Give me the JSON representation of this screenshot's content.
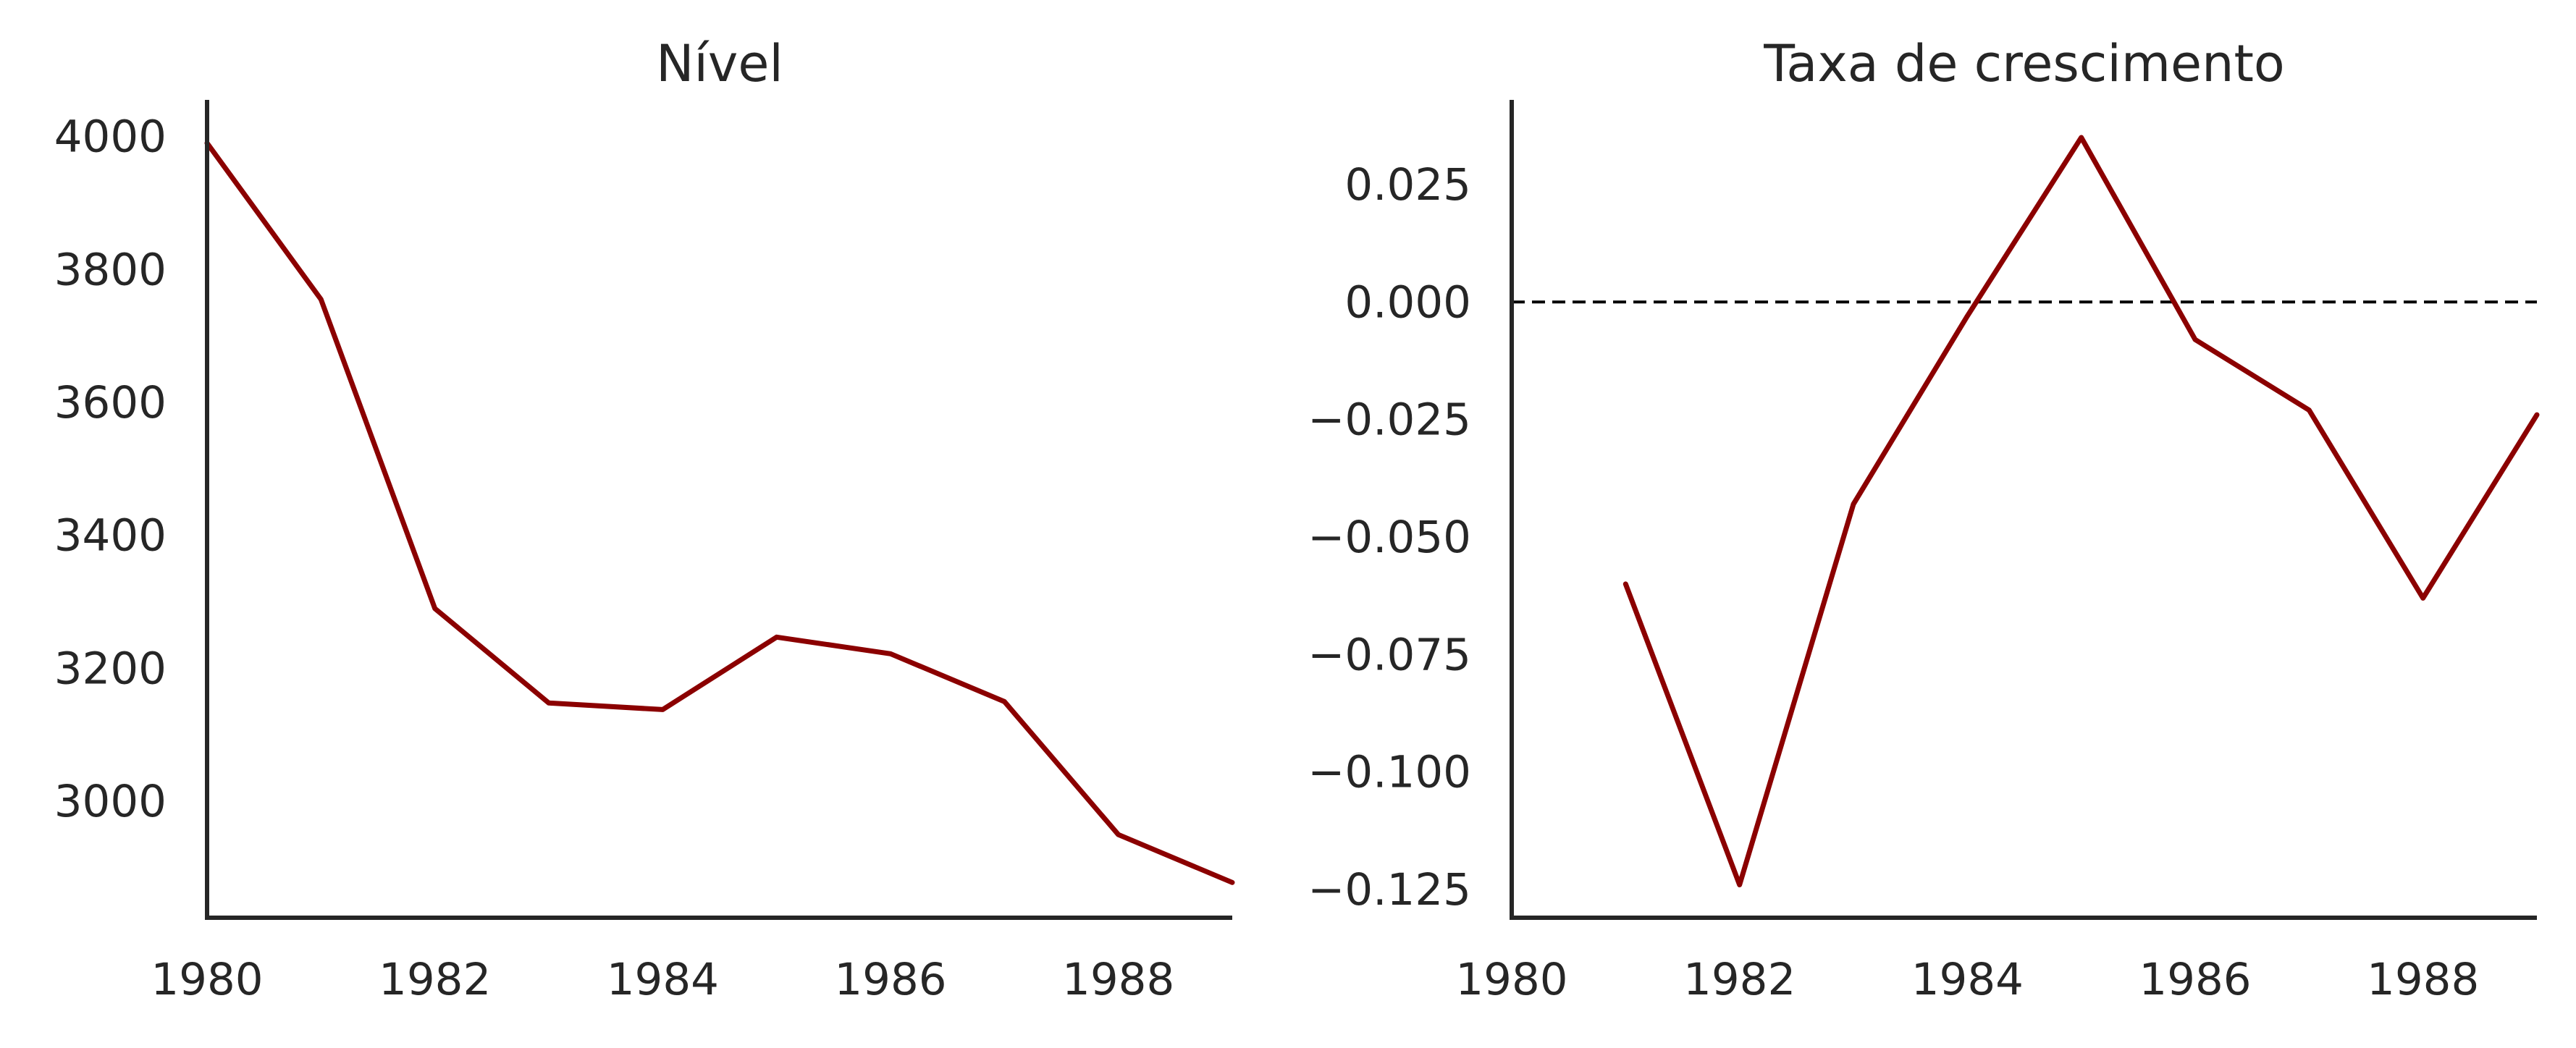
{
  "colors": {
    "series": "#8b0000",
    "axis": "#262626",
    "reference": "#000000",
    "background": "#ffffff"
  },
  "chart_data": [
    {
      "type": "line",
      "title": "Nível",
      "xlabel": "",
      "ylabel": "",
      "x": [
        1980,
        1981,
        1982,
        1983,
        1984,
        1985,
        1986,
        1987,
        1988,
        1989
      ],
      "series": [
        {
          "values": [
            3990,
            3755,
            3290,
            3148,
            3138,
            3247,
            3222,
            3150,
            2950,
            2878
          ]
        }
      ],
      "xlim": [
        1980,
        1989
      ],
      "ylim": [
        2825,
        4055
      ],
      "xticks": [
        1980,
        1982,
        1984,
        1986,
        1988
      ],
      "xtick_labels": [
        "1980",
        "1982",
        "1984",
        "1986",
        "1988"
      ],
      "yticks": [
        3000,
        3200,
        3400,
        3600,
        3800,
        4000
      ],
      "ytick_labels": [
        "3000",
        "3200",
        "3400",
        "3600",
        "3800",
        "4000"
      ],
      "grid": false,
      "legend": "none"
    },
    {
      "type": "line",
      "title": "Taxa de crescimento",
      "xlabel": "",
      "ylabel": "",
      "x": [
        1981,
        1982,
        1983,
        1984,
        1985,
        1986,
        1987,
        1988,
        1989
      ],
      "series": [
        {
          "values": [
            -0.06,
            -0.124,
            -0.043,
            -0.003,
            0.035,
            -0.008,
            -0.023,
            -0.063,
            -0.024
          ]
        }
      ],
      "reference_line": {
        "y": 0.0,
        "style": "dashed"
      },
      "xlim": [
        1980,
        1989
      ],
      "ylim": [
        -0.131,
        0.043
      ],
      "xticks": [
        1980,
        1982,
        1984,
        1986,
        1988
      ],
      "xtick_labels": [
        "1980",
        "1982",
        "1984",
        "1986",
        "1988"
      ],
      "yticks": [
        0.025,
        0.0,
        -0.025,
        -0.05,
        -0.075,
        -0.1,
        -0.125
      ],
      "ytick_labels": [
        "0.025",
        "0.000",
        "−0.025",
        "−0.050",
        "−0.075",
        "−0.100",
        "−0.125"
      ],
      "grid": false,
      "legend": "none"
    }
  ]
}
